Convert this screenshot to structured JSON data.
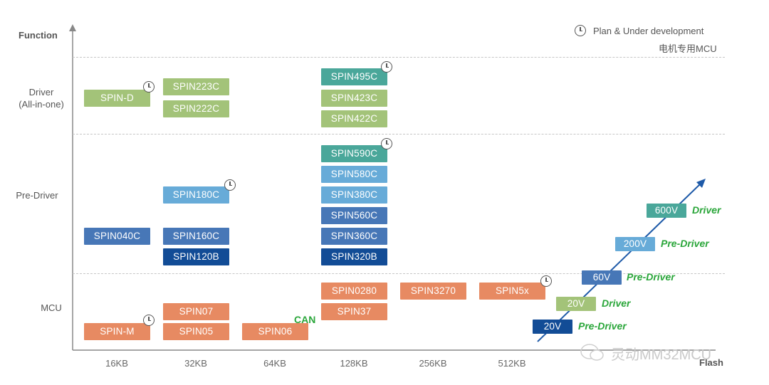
{
  "axes": {
    "y_title": "Function",
    "x_title": "Flash",
    "x_ticks": [
      "16KB",
      "32KB",
      "64KB",
      "128KB",
      "256KB",
      "512KB"
    ],
    "rows": {
      "driver_line1": "Driver",
      "driver_line2": "(All-in-one)",
      "predriver": "Pre-Driver",
      "mcu": "MCU"
    }
  },
  "legend": {
    "line1": "Plan & Under development",
    "line2": "电机专用MCU",
    "icon": "clock-icon"
  },
  "chips": {
    "spin_d": "SPIN-D",
    "spin223c": "SPIN223C",
    "spin222c": "SPIN222C",
    "spin495c": "SPIN495C",
    "spin423c": "SPIN423C",
    "spin422c": "SPIN422C",
    "spin590c": "SPIN590C",
    "spin580c": "SPIN580C",
    "spin380c": "SPIN380C",
    "spin560c": "SPIN560C",
    "spin360c": "SPIN360C",
    "spin320b": "SPIN320B",
    "spin180c": "SPIN180C",
    "spin040c": "SPIN040C",
    "spin160c": "SPIN160C",
    "spin120b": "SPIN120B",
    "spin0280": "SPIN0280",
    "spin3270": "SPIN3270",
    "spin5x": "SPIN5x",
    "spin07": "SPIN07",
    "spin37": "SPIN37",
    "spin_m": "SPIN-M",
    "spin05": "SPIN05",
    "spin06": "SPIN06"
  },
  "can_label": "CAN",
  "voltage_steps": [
    {
      "voltage": "600V",
      "type": "Driver"
    },
    {
      "voltage": "200V",
      "type": "Pre-Driver"
    },
    {
      "voltage": "60V",
      "type": "Pre-Driver"
    },
    {
      "voltage": "20V",
      "type": "Driver"
    },
    {
      "voltage": "20V",
      "type": "Pre-Driver"
    }
  ],
  "colors": {
    "driver_green": "#a3c379",
    "planned_teal": "#4aa79a",
    "light_blue": "#67abd8",
    "mid_blue": "#4777b7",
    "dark_blue": "#124c96",
    "mcu_orange": "#e78a62",
    "tag_green": "#2aa63a"
  },
  "watermark": "灵动MM32MCU"
}
